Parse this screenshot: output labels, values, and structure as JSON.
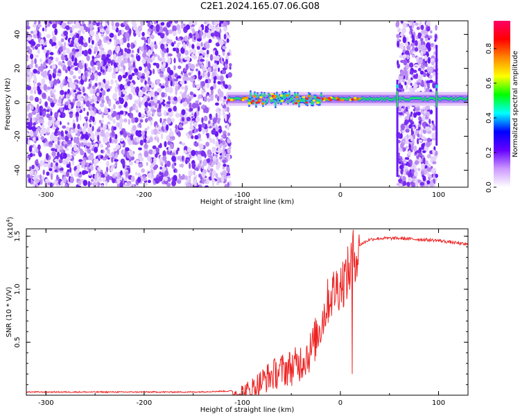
{
  "title": "C2E1.2024.165.07.06.G08",
  "chart_data": [
    {
      "type": "heatmap",
      "xlabel": "Height of straight line (km)",
      "ylabel": "Frequency (Hz)",
      "xlim": [
        -320,
        130
      ],
      "ylim": [
        -50,
        48
      ],
      "xticks": [
        -300,
        -200,
        -100,
        0,
        100
      ],
      "xtick_labels": [
        "-300",
        "-200",
        "-100",
        "0",
        "100"
      ],
      "yticks": [
        -40,
        -20,
        0,
        20,
        40
      ],
      "ytick_labels": [
        "-40",
        "-20",
        "0",
        "20",
        "40"
      ],
      "colorbar": {
        "label": "Normalized spectral amplitude",
        "range": [
          0,
          0.96
        ],
        "ticks": [
          0.0,
          0.2,
          0.4,
          0.6,
          0.8
        ],
        "tick_labels": [
          "0.0",
          "0.2",
          "0.4",
          "0.6",
          "0.8"
        ],
        "colors": [
          "#ffffff",
          "#cc99ff",
          "#6600ff",
          "#0000ff",
          "#00ffff",
          "#00ff00",
          "#ffff00",
          "#ff8800",
          "#ff0000",
          "#ff0066"
        ]
      },
      "regions": [
        {
          "x": [
            -320,
            -115
          ],
          "freq_range": [
            -50,
            48
          ],
          "description_level": 0.15
        },
        {
          "x": [
            -115,
            130
          ],
          "carrier_freq_hz": 2,
          "peak_level": 0.85
        },
        {
          "x": [
            58,
            98
          ],
          "freq_range": [
            -50,
            48
          ],
          "description_level": 0.15
        }
      ]
    },
    {
      "type": "line",
      "xlabel": "Height of straight line (km)",
      "ylabel": "SNR (10 * V/V)",
      "y_multiplier_label": "(x10",
      "y_multiplier_exp": "4",
      "y_multiplier_close": ")",
      "xlim": [
        -320,
        130
      ],
      "ylim": [
        0,
        1.57
      ],
      "xticks": [
        -300,
        -200,
        -100,
        0,
        100
      ],
      "xtick_labels": [
        "-300",
        "-200",
        "-100",
        "0",
        "100"
      ],
      "yticks": [
        0.5,
        1.0,
        1.5
      ],
      "ytick_labels": [
        "0.5",
        "1.0",
        "1.5"
      ],
      "color": "#ee2222",
      "series": [
        {
          "x": [
            -320,
            -250,
            -200,
            -150,
            -110,
            -95,
            -85,
            -75,
            -60,
            -45,
            -30,
            -20,
            -12,
            -5,
            0,
            5,
            10,
            13,
            20,
            30,
            40,
            60,
            80,
            100,
            115,
            130
          ],
          "y": [
            0.03,
            0.03,
            0.03,
            0.03,
            0.04,
            0.07,
            0.14,
            0.22,
            0.3,
            0.35,
            0.5,
            0.75,
            1.0,
            1.1,
            1.15,
            1.2,
            1.3,
            1.45,
            1.42,
            1.47,
            1.48,
            1.48,
            1.47,
            1.46,
            1.44,
            1.42
          ]
        }
      ]
    }
  ]
}
